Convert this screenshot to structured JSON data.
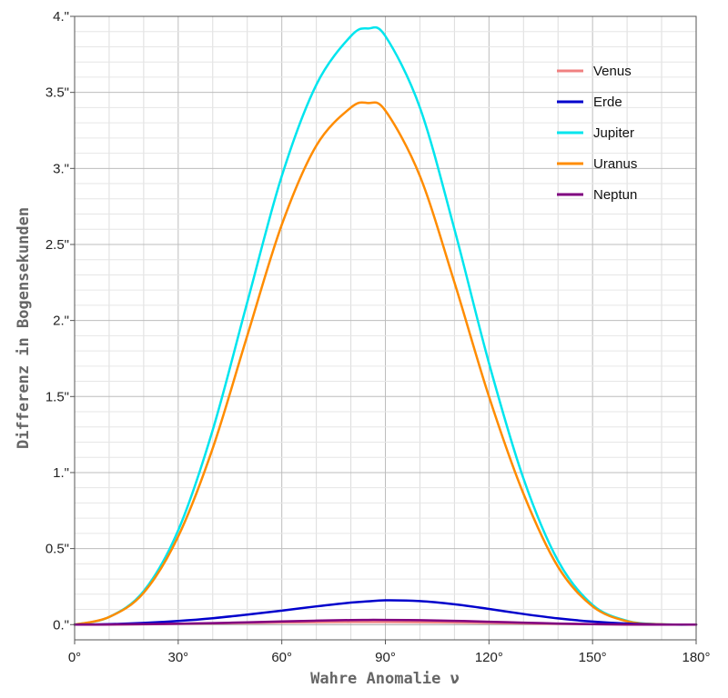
{
  "chart_data": {
    "type": "line",
    "title": "",
    "xlabel": "Wahre Anomalie ν",
    "ylabel": "Differenz in Bogensekunden",
    "xlim": [
      0,
      180
    ],
    "ylim": [
      -0.1,
      4.0
    ],
    "x_ticks": [
      0,
      30,
      60,
      90,
      120,
      150,
      180
    ],
    "x_tick_labels": [
      "0°",
      "30°",
      "60°",
      "90°",
      "120°",
      "150°",
      "180°"
    ],
    "y_ticks": [
      0,
      0.5,
      1,
      1.5,
      2,
      2.5,
      3,
      3.5,
      4
    ],
    "y_tick_labels": [
      "0.\"",
      "0.5\"",
      "1.\"",
      "1.5\"",
      "2.\"",
      "2.5\"",
      "3.\"",
      "3.5\"",
      "4.\""
    ],
    "grid": true,
    "legend_position": "top-right",
    "x": [
      0,
      10,
      20,
      30,
      40,
      50,
      60,
      70,
      80,
      85,
      90,
      100,
      110,
      120,
      130,
      140,
      150,
      160,
      170,
      180
    ],
    "series": [
      {
        "name": "Venus",
        "color": "#F08080",
        "values": [
          0,
          0.0005,
          0.002,
          0.005,
          0.008,
          0.011,
          0.014,
          0.016,
          0.017,
          0.0172,
          0.017,
          0.016,
          0.014,
          0.011,
          0.008,
          0.005,
          0.003,
          0.001,
          0.0003,
          0
        ]
      },
      {
        "name": "Erde",
        "color": "#0000CC",
        "values": [
          0,
          0.003,
          0.011,
          0.024,
          0.042,
          0.066,
          0.092,
          0.12,
          0.145,
          0.153,
          0.16,
          0.155,
          0.134,
          0.103,
          0.07,
          0.041,
          0.02,
          0.007,
          0.001,
          0
        ]
      },
      {
        "name": "Jupiter",
        "color": "#00E5EE",
        "values": [
          0,
          0.05,
          0.22,
          0.62,
          1.28,
          2.12,
          2.95,
          3.55,
          3.87,
          3.92,
          3.87,
          3.4,
          2.6,
          1.72,
          0.96,
          0.42,
          0.13,
          0.025,
          0.002,
          0
        ]
      },
      {
        "name": "Uranus",
        "color": "#FF8C00",
        "values": [
          0,
          0.05,
          0.21,
          0.58,
          1.16,
          1.9,
          2.63,
          3.15,
          3.4,
          3.43,
          3.38,
          2.95,
          2.25,
          1.5,
          0.86,
          0.38,
          0.12,
          0.022,
          0.002,
          0
        ]
      },
      {
        "name": "Neptun",
        "color": "#800080",
        "values": [
          0,
          0.0009,
          0.003,
          0.006,
          0.01,
          0.015,
          0.021,
          0.026,
          0.03,
          0.031,
          0.031,
          0.029,
          0.025,
          0.019,
          0.013,
          0.007,
          0.003,
          0.001,
          0.0002,
          0
        ]
      }
    ]
  }
}
